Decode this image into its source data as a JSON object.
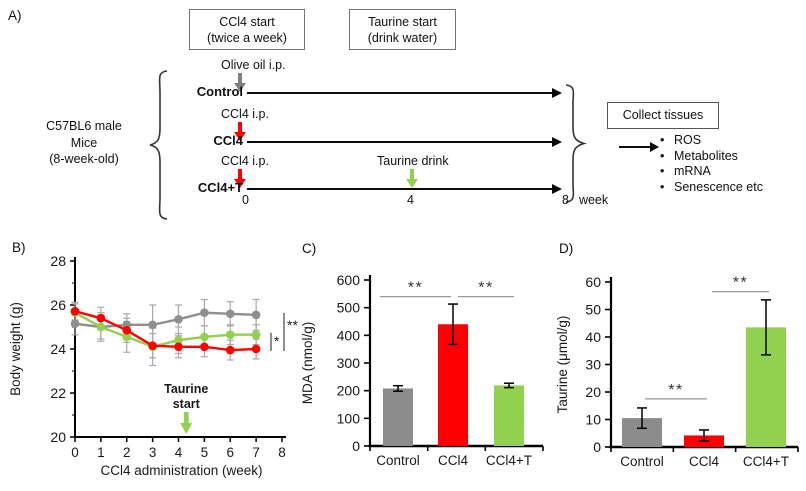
{
  "panel_labels": {
    "a": "A)",
    "b": "B)",
    "c": "C)",
    "d": "D)"
  },
  "panel_a": {
    "top_boxes": [
      {
        "line1": "CCl4 start",
        "line2": "(twice a week)"
      },
      {
        "line1": "Taurine start",
        "line2": "(drink water)"
      }
    ],
    "subject": {
      "line1": "C57BL6 male",
      "line2": "Mice",
      "line3": "(8-week-old)"
    },
    "timelines": [
      {
        "group": "Control",
        "injection": "Olive oil  i.p.",
        "arrow_color": "#7f7f7f"
      },
      {
        "group": "CCl4",
        "injection": "CCl4 i.p.",
        "arrow_color": "#ff0000"
      },
      {
        "group": "CCl4+T",
        "injection": "CCl4 i.p.",
        "arrow_color": "#ff0000",
        "extra_label": "Taurine drink",
        "extra_arrow_color": "#92d050"
      }
    ],
    "tick_0": "0",
    "tick_4": "4",
    "tick_8": "8",
    "tick_unit": "week",
    "collect_box": "Collect tissues",
    "bullet": "•",
    "outputs": [
      "ROS",
      "Metabolites",
      "mRNA",
      "Senescence etc"
    ]
  },
  "chart_data": [
    {
      "id": "B",
      "type": "line",
      "xlabel": "CCl4 administration (week)",
      "ylabel": "Body weight (g)",
      "x": [
        0,
        1,
        2,
        3,
        4,
        5,
        6,
        7
      ],
      "xlim": [
        0,
        8
      ],
      "ylim": [
        20,
        28
      ],
      "xticks": [
        0,
        1,
        2,
        3,
        4,
        5,
        6,
        7,
        8
      ],
      "yticks": [
        20,
        22,
        24,
        26,
        28
      ],
      "yticks_minor": [
        21,
        23,
        25,
        27
      ],
      "grid": false,
      "legend": "none",
      "series": [
        {
          "name": "Control",
          "color": "#8f8f8f",
          "values": [
            25.15,
            25.0,
            25.1,
            25.1,
            25.35,
            25.65,
            25.6,
            25.55
          ],
          "errors": [
            0.5,
            0.65,
            0.5,
            0.9,
            0.65,
            0.6,
            0.55,
            0.7
          ]
        },
        {
          "name": "CCl4",
          "color": "#ff0000",
          "values": [
            25.72,
            25.4,
            24.85,
            24.15,
            24.1,
            24.1,
            23.95,
            24.0
          ],
          "errors": [
            0.4,
            0.5,
            0.55,
            0.55,
            0.5,
            0.45,
            0.45,
            0.45
          ]
        },
        {
          "name": "CCl4+T",
          "color": "#92d050",
          "values": [
            25.65,
            25.0,
            24.55,
            24.1,
            24.4,
            24.55,
            24.65,
            24.65
          ],
          "errors": [
            0.4,
            0.55,
            0.7,
            0.85,
            0.6,
            0.5,
            0.45,
            0.45
          ]
        }
      ],
      "annotation": {
        "line1": "Taurine",
        "line2": "start",
        "arrow_x": 4.3,
        "color": "#92d050"
      },
      "significance": [
        {
          "label": "*",
          "series_a": "CCl4+T",
          "series_b": "CCl4"
        },
        {
          "label": "**",
          "series_a": "Control",
          "series_b": "CCl4"
        }
      ]
    },
    {
      "id": "C",
      "type": "bar",
      "ylabel": "MDA (nmol/g)",
      "categories": [
        "Control",
        "CCl4",
        "CCl4+T"
      ],
      "values": [
        208,
        440,
        219
      ],
      "errors": [
        10,
        73,
        8
      ],
      "colors": [
        "#8c8c8c",
        "#ff0000",
        "#92d050"
      ],
      "ylim": [
        0,
        600
      ],
      "yticks": [
        0,
        100,
        200,
        300,
        400,
        500,
        600
      ],
      "significance": [
        {
          "label": "**",
          "from": 0,
          "to": 1,
          "y": 540
        },
        {
          "label": "**",
          "from": 1,
          "to": 2,
          "y": 540
        }
      ]
    },
    {
      "id": "D",
      "type": "bar",
      "ylabel": "Taurine (μmol/g)",
      "categories": [
        "Control",
        "CCl4",
        "CCl4+T"
      ],
      "values": [
        10.5,
        4.2,
        43.5
      ],
      "errors": [
        3.7,
        2,
        10
      ],
      "colors": [
        "#8c8c8c",
        "#ff0000",
        "#92d050"
      ],
      "ylim": [
        0,
        60
      ],
      "yticks": [
        0,
        10,
        20,
        30,
        40,
        50,
        60
      ],
      "significance": [
        {
          "label": "**",
          "from": 0,
          "to": 1,
          "y": 17.5
        },
        {
          "label": "**",
          "from": 1,
          "to": 2,
          "y": 56.5
        }
      ]
    }
  ]
}
